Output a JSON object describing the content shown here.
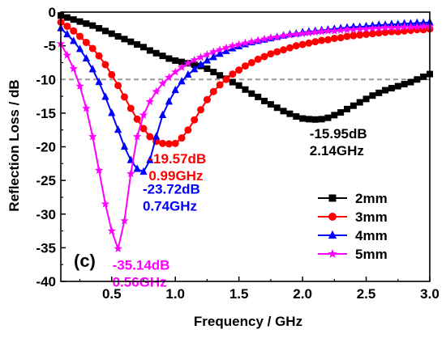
{
  "chart_data": {
    "type": "line",
    "xlabel": "Frequency / GHz",
    "ylabel": "Reflection Loss / dB",
    "xlim": [
      0.1,
      3.0
    ],
    "ylim": [
      -40,
      0
    ],
    "xticks": [
      0.5,
      1.0,
      1.5,
      2.0,
      2.5,
      3.0
    ],
    "xtick_labels": [
      "0.5",
      "1.0",
      "1.5",
      "2.0",
      "2.5",
      "3.0"
    ],
    "yticks": [
      0,
      -5,
      -10,
      -15,
      -20,
      -25,
      -30,
      -35,
      -40
    ],
    "ytick_labels": [
      "0",
      "-5",
      "-10",
      "-15",
      "-20",
      "-25",
      "-30",
      "-35",
      "-40"
    ],
    "reference_line": {
      "y": -10,
      "style": "dashed",
      "color": "#999999"
    },
    "legend_position": "lower-right",
    "panel_label": "(c)",
    "x": [
      0.1,
      0.15,
      0.2,
      0.25,
      0.3,
      0.35,
      0.4,
      0.45,
      0.5,
      0.55,
      0.6,
      0.65,
      0.7,
      0.75,
      0.8,
      0.85,
      0.9,
      0.95,
      1.0,
      1.05,
      1.1,
      1.15,
      1.2,
      1.25,
      1.3,
      1.35,
      1.4,
      1.45,
      1.5,
      1.55,
      1.6,
      1.65,
      1.7,
      1.75,
      1.8,
      1.85,
      1.9,
      1.95,
      2.0,
      2.05,
      2.1,
      2.15,
      2.2,
      2.25,
      2.3,
      2.35,
      2.4,
      2.45,
      2.5,
      2.55,
      2.6,
      2.65,
      2.7,
      2.75,
      2.8,
      2.85,
      2.9,
      2.95,
      3.0
    ],
    "series": [
      {
        "name": "2mm",
        "color": "#000000",
        "marker": "square",
        "values": [
          -0.5,
          -0.8,
          -1.1,
          -1.4,
          -1.7,
          -2.0,
          -2.4,
          -2.8,
          -3.2,
          -3.6,
          -4.0,
          -4.4,
          -4.8,
          -5.2,
          -5.7,
          -6.1,
          -6.5,
          -6.9,
          -7.2,
          -7.4,
          -7.6,
          -7.8,
          -8.0,
          -8.4,
          -8.9,
          -9.4,
          -9.9,
          -10.4,
          -10.9,
          -11.5,
          -12.1,
          -12.6,
          -13.2,
          -13.7,
          -14.2,
          -14.7,
          -15.1,
          -15.5,
          -15.8,
          -15.9,
          -15.95,
          -15.9,
          -15.7,
          -15.3,
          -14.9,
          -14.4,
          -13.9,
          -13.4,
          -12.9,
          -12.4,
          -12.0,
          -11.6,
          -11.3,
          -11.0,
          -10.7,
          -10.4,
          -10.0,
          -9.6,
          -9.2
        ]
      },
      {
        "name": "3mm",
        "color": "#ff0000",
        "marker": "circle",
        "values": [
          -1.5,
          -2.1,
          -2.8,
          -3.6,
          -4.5,
          -5.4,
          -6.5,
          -7.8,
          -9.3,
          -10.9,
          -12.6,
          -14.3,
          -15.9,
          -17.3,
          -18.5,
          -19.2,
          -19.5,
          -19.57,
          -19.5,
          -18.7,
          -17.5,
          -16.0,
          -14.5,
          -13.0,
          -11.8,
          -10.8,
          -10.0,
          -9.2,
          -8.6,
          -8.0,
          -7.5,
          -7.0,
          -6.6,
          -6.2,
          -5.9,
          -5.6,
          -5.3,
          -5.0,
          -4.8,
          -4.6,
          -4.4,
          -4.2,
          -4.1,
          -3.9,
          -3.8,
          -3.6,
          -3.5,
          -3.4,
          -3.3,
          -3.2,
          -3.1,
          -3.0,
          -2.9,
          -2.9,
          -2.8,
          -2.7,
          -2.6,
          -2.6,
          -2.5
        ]
      },
      {
        "name": "4mm",
        "color": "#0000ff",
        "marker": "triangle",
        "values": [
          -2.4,
          -3.3,
          -4.3,
          -5.5,
          -6.9,
          -8.5,
          -10.4,
          -12.6,
          -15.0,
          -17.5,
          -20.0,
          -22.0,
          -23.3,
          -23.72,
          -22.0,
          -18.5,
          -15.3,
          -13.3,
          -11.6,
          -10.3,
          -9.3,
          -8.5,
          -7.8,
          -7.2,
          -6.7,
          -6.2,
          -5.8,
          -5.4,
          -5.1,
          -4.8,
          -4.5,
          -4.3,
          -4.1,
          -3.9,
          -3.7,
          -3.5,
          -3.3,
          -3.2,
          -3.0,
          -2.9,
          -2.8,
          -2.7,
          -2.6,
          -2.5,
          -2.4,
          -2.3,
          -2.2,
          -2.2,
          -2.1,
          -2.0,
          -1.9,
          -1.9,
          -1.8,
          -1.8,
          -1.7,
          -1.7,
          -1.6,
          -1.6,
          -1.5
        ]
      },
      {
        "name": "5mm",
        "color": "#ff00ff",
        "marker": "star",
        "values": [
          -4.7,
          -6.4,
          -8.4,
          -11.0,
          -14.3,
          -18.5,
          -23.5,
          -28.5,
          -32.5,
          -35.14,
          -31.0,
          -24.0,
          -18.5,
          -15.3,
          -13.3,
          -11.8,
          -10.6,
          -9.7,
          -8.9,
          -8.2,
          -7.6,
          -7.1,
          -6.7,
          -6.3,
          -5.9,
          -5.6,
          -5.3,
          -5.0,
          -4.8,
          -4.6,
          -4.4,
          -4.2,
          -4.0,
          -3.8,
          -3.7,
          -3.5,
          -3.4,
          -3.3,
          -3.2,
          -3.1,
          -3.0,
          -2.9,
          -2.8,
          -2.8,
          -2.7,
          -2.6,
          -2.6,
          -2.5,
          -2.5,
          -2.4,
          -2.4,
          -2.3,
          -2.3,
          -2.3,
          -2.2,
          -2.2,
          -2.2,
          -2.1,
          -2.1
        ]
      }
    ],
    "annotations": [
      {
        "series": "2mm",
        "lines": [
          "-15.95dB",
          "2.14GHz"
        ],
        "color": "#000000"
      },
      {
        "series": "3mm",
        "lines": [
          "-19.57dB",
          "0.99GHz"
        ],
        "color": "#ff0000"
      },
      {
        "series": "4mm",
        "lines": [
          "-23.72dB",
          "0.74GHz"
        ],
        "color": "#0000ff"
      },
      {
        "series": "5mm",
        "lines": [
          "-35.14dB",
          "0.56GHz"
        ],
        "color": "#ff00ff"
      }
    ]
  }
}
